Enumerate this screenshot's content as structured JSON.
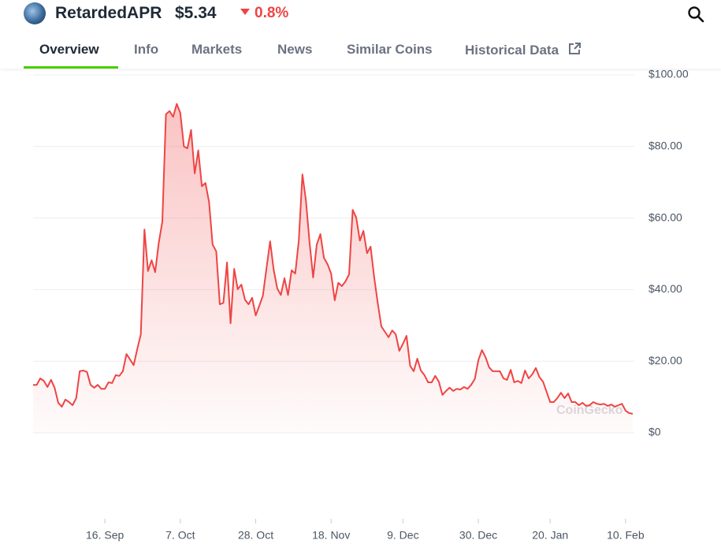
{
  "header": {
    "coin": "RetardedAPR",
    "price": "$5.34",
    "change": "0.8%"
  },
  "tabs": [
    "Overview",
    "Info",
    "Markets",
    "News",
    "Similar Coins",
    "Historical Data"
  ],
  "chart_data": {
    "type": "line",
    "color": "#ef4444",
    "grid": true,
    "area": true,
    "watermark": "CoinGecko",
    "values": [
      13.4,
      13.4,
      15.2,
      14.5,
      12.8,
      14.8,
      12.6,
      8.4,
      7.3,
      9.3,
      8.6,
      7.7,
      9.7,
      17.2,
      17.4,
      17.0,
      13.4,
      12.6,
      13.4,
      12.3,
      12.3,
      14.1,
      13.9,
      16.1,
      15.9,
      17.2,
      22.0,
      20.5,
      18.9,
      23.3,
      27.5,
      56.8,
      45.2,
      48.2,
      44.9,
      53.1,
      59.0,
      89.0,
      89.9,
      88.3,
      91.9,
      89.4,
      80.0,
      79.5,
      84.6,
      72.5,
      78.9,
      68.9,
      69.8,
      64.5,
      52.6,
      50.7,
      35.9,
      36.3,
      47.6,
      30.6,
      45.8,
      40.1,
      41.4,
      37.2,
      35.9,
      37.7,
      32.8,
      35.5,
      38.3,
      46.0,
      53.5,
      45.6,
      40.3,
      38.5,
      43.2,
      38.5,
      45.4,
      44.5,
      53.7,
      72.2,
      64.8,
      53.1,
      43.4,
      52.6,
      55.5,
      48.9,
      47.1,
      44.5,
      37.0,
      41.9,
      41.0,
      42.3,
      44.3,
      62.3,
      60.1,
      53.7,
      56.4,
      50.2,
      52.0,
      43.4,
      36.1,
      29.7,
      28.2,
      26.7,
      28.6,
      27.5,
      22.9,
      24.9,
      27.1,
      18.7,
      17.2,
      20.7,
      17.4,
      16.1,
      14.1,
      14.1,
      15.9,
      14.3,
      10.6,
      11.7,
      12.6,
      11.7,
      12.3,
      12.1,
      12.8,
      12.3,
      13.4,
      15.0,
      20.3,
      23.1,
      21.1,
      18.3,
      17.2,
      17.2,
      17.2,
      15.2,
      14.8,
      17.6,
      14.1,
      14.5,
      13.9,
      17.4,
      15.2,
      16.3,
      18.1,
      15.6,
      14.3,
      11.5,
      8.6,
      8.6,
      9.7,
      11.2,
      9.7,
      11.0,
      8.6,
      8.6,
      7.7,
      8.4,
      7.5,
      7.7,
      8.6,
      8.1,
      7.9,
      8.1,
      7.5,
      7.9,
      7.3,
      7.7,
      8.1,
      6.2,
      5.5,
      5.3
    ],
    "ylim": [
      0,
      100
    ],
    "yticks": [
      {
        "value": 0,
        "label": "$0"
      },
      {
        "value": 20,
        "label": "$20.00"
      },
      {
        "value": 40,
        "label": "$40.00"
      },
      {
        "value": 60,
        "label": "$60.00"
      },
      {
        "value": 80,
        "label": "$80.00"
      },
      {
        "value": 100,
        "label": "$100.00"
      }
    ],
    "xticks": [
      {
        "value": 20,
        "label": "16. Sep"
      },
      {
        "value": 41,
        "label": "7. Oct"
      },
      {
        "value": 62,
        "label": "28. Oct"
      },
      {
        "value": 83,
        "label": "18. Nov"
      },
      {
        "value": 103,
        "label": "9. Dec"
      },
      {
        "value": 124,
        "label": "30. Dec"
      },
      {
        "value": 144,
        "label": "20. Jan"
      },
      {
        "value": 165,
        "label": "10. Feb"
      }
    ]
  }
}
